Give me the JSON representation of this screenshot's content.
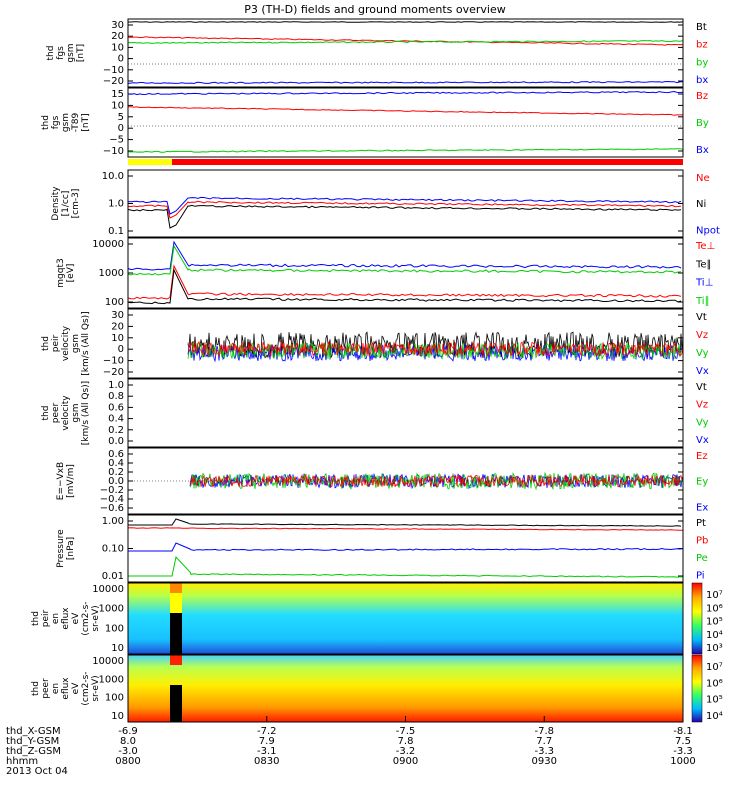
{
  "chart_data": {
    "type": "line",
    "title": "P3 (TH-D) fields and ground moments overview",
    "panels": [
      {
        "id": "fgs_gsm",
        "ylabel": [
          "thd",
          "fgs",
          "gsm",
          "[nT]"
        ],
        "yticks": [
          "30",
          "20",
          "10",
          "0",
          "−10",
          "−20"
        ],
        "legend": [
          {
            "name": "Bt",
            "color": "#000000"
          },
          {
            "name": "bz",
            "color": "#ff0000"
          },
          {
            "name": "by",
            "color": "#00cc00"
          },
          {
            "name": "bx",
            "color": "#0000ff"
          }
        ],
        "series": [
          {
            "name": "Bt",
            "start": 30,
            "end": 30
          },
          {
            "name": "bz",
            "start": 20,
            "end": 13
          },
          {
            "name": "by",
            "start": 14,
            "end": 15
          },
          {
            "name": "bx",
            "start": -20,
            "end": -19
          }
        ]
      },
      {
        "id": "fgs_gsm_dif",
        "ylabel": [
          "thd",
          "fgs",
          "gsm",
          "-T89",
          "[nT]"
        ],
        "yticks": [
          "15",
          "10",
          "5",
          "0",
          "−5",
          "−10"
        ],
        "legend": [
          {
            "name": "Bz",
            "color": "#ff0000"
          },
          {
            "name": "By",
            "color": "#00cc00"
          },
          {
            "name": "Bx",
            "color": "#0000ff"
          }
        ],
        "series": [
          {
            "name": "Bz",
            "start": 8,
            "end": 6
          },
          {
            "name": "By",
            "start": -11,
            "end": -10
          },
          {
            "name": "Bx",
            "start": 14,
            "end": 15
          }
        ]
      },
      {
        "id": "density",
        "ylabel": [
          "Density",
          "[1/cc]",
          "[cm-3]"
        ],
        "yticks": [
          "10.0",
          "1.0",
          "0.1"
        ],
        "log": true,
        "legend": [
          {
            "name": "Ne",
            "color": "#ff0000"
          },
          {
            "name": "Ni",
            "color": "#000000"
          },
          {
            "name": "Npot",
            "color": "#0000ff"
          }
        ]
      },
      {
        "id": "temperature",
        "ylabel": [
          "mgqt3",
          "[eV]"
        ],
        "yticks": [
          "10000",
          "1000",
          "100"
        ],
        "log": true,
        "legend": [
          {
            "name": "Te⊥",
            "color": "#ff0000"
          },
          {
            "name": "Te∥",
            "color": "#000000"
          },
          {
            "name": "Ti⊥",
            "color": "#0000ff"
          },
          {
            "name": "Ti∥",
            "color": "#00cc00"
          }
        ]
      },
      {
        "id": "peir_velocity",
        "ylabel": [
          "thd",
          "peir",
          "velocity",
          "gsm",
          "[km/s (All Qs)]"
        ],
        "yticks": [
          "30",
          "20",
          "10",
          "0",
          "−10",
          "−20"
        ],
        "legend": [
          {
            "name": "Vt",
            "color": "#000000"
          },
          {
            "name": "Vz",
            "color": "#ff0000"
          },
          {
            "name": "Vy",
            "color": "#00cc00"
          },
          {
            "name": "Vx",
            "color": "#0000ff"
          }
        ]
      },
      {
        "id": "peer_velocity",
        "ylabel": [
          "thd",
          "peer",
          "velocity",
          "gsm",
          "[km/s (All Qs)]"
        ],
        "yticks": [
          "1.0",
          "0.8",
          "0.6",
          "0.4",
          "0.2",
          "0.0"
        ],
        "legend": [
          {
            "name": "Vt",
            "color": "#000000"
          },
          {
            "name": "Vz",
            "color": "#ff0000"
          },
          {
            "name": "Vy",
            "color": "#00cc00"
          },
          {
            "name": "Vx",
            "color": "#0000ff"
          }
        ]
      },
      {
        "id": "efield",
        "ylabel": [
          "E=−VxB",
          "[mV/m]"
        ],
        "yticks": [
          "0.6",
          "0.4",
          "0.2",
          "0.0",
          "−0.2",
          "−0.4",
          "−0.6"
        ],
        "legend": [
          {
            "name": "Ez",
            "color": "#ff0000"
          },
          {
            "name": "Ey",
            "color": "#00cc00"
          },
          {
            "name": "Ex",
            "color": "#0000ff"
          }
        ]
      },
      {
        "id": "pressure",
        "ylabel": [
          "Pressure",
          "[nPa]"
        ],
        "yticks": [
          "1.00",
          "0.10",
          "0.01"
        ],
        "log": true,
        "legend": [
          {
            "name": "Pt",
            "color": "#000000"
          },
          {
            "name": "Pb",
            "color": "#ff0000"
          },
          {
            "name": "Pe",
            "color": "#00cc00"
          },
          {
            "name": "Pi",
            "color": "#0000ff"
          }
        ]
      },
      {
        "id": "peir_spec",
        "ylabel": [
          "thd",
          "peir",
          "en",
          "eflux",
          "eV",
          "(cm2-s-",
          "sr-eV)"
        ],
        "yticks": [
          "10000",
          "1000",
          "100",
          "10"
        ],
        "colorbar": [
          "10⁷",
          "10⁶",
          "10⁵",
          "10⁴",
          "10³"
        ]
      },
      {
        "id": "peer_spec",
        "ylabel": [
          "thd",
          "peer",
          "en",
          "eflux",
          "eV",
          "(cm2-s-",
          "sr-eV)"
        ],
        "yticks": [
          "10000",
          "1000",
          "100",
          "10"
        ],
        "colorbar": [
          "10⁷",
          "10⁶",
          "10⁵",
          "10⁴"
        ]
      }
    ],
    "xaxis": {
      "row_labels": [
        "thd_X-GSM",
        "thd_Y-GSM",
        "thd_Z-GSM",
        "hhmm",
        "2013 Oct 04"
      ],
      "ticks": [
        {
          "x": "-6.9",
          "y": "8.0",
          "z": "-3.0",
          "t": "0800"
        },
        {
          "x": "-7.2",
          "y": "7.9",
          "z": "-3.1",
          "t": "0830"
        },
        {
          "x": "-7.5",
          "y": "7.8",
          "z": "-3.2",
          "t": "0900"
        },
        {
          "x": "-7.8",
          "y": "7.7",
          "z": "-3.3",
          "t": "0930"
        },
        {
          "x": "-8.1",
          "y": "7.5",
          "z": "-3.3",
          "t": "1000"
        }
      ]
    }
  }
}
